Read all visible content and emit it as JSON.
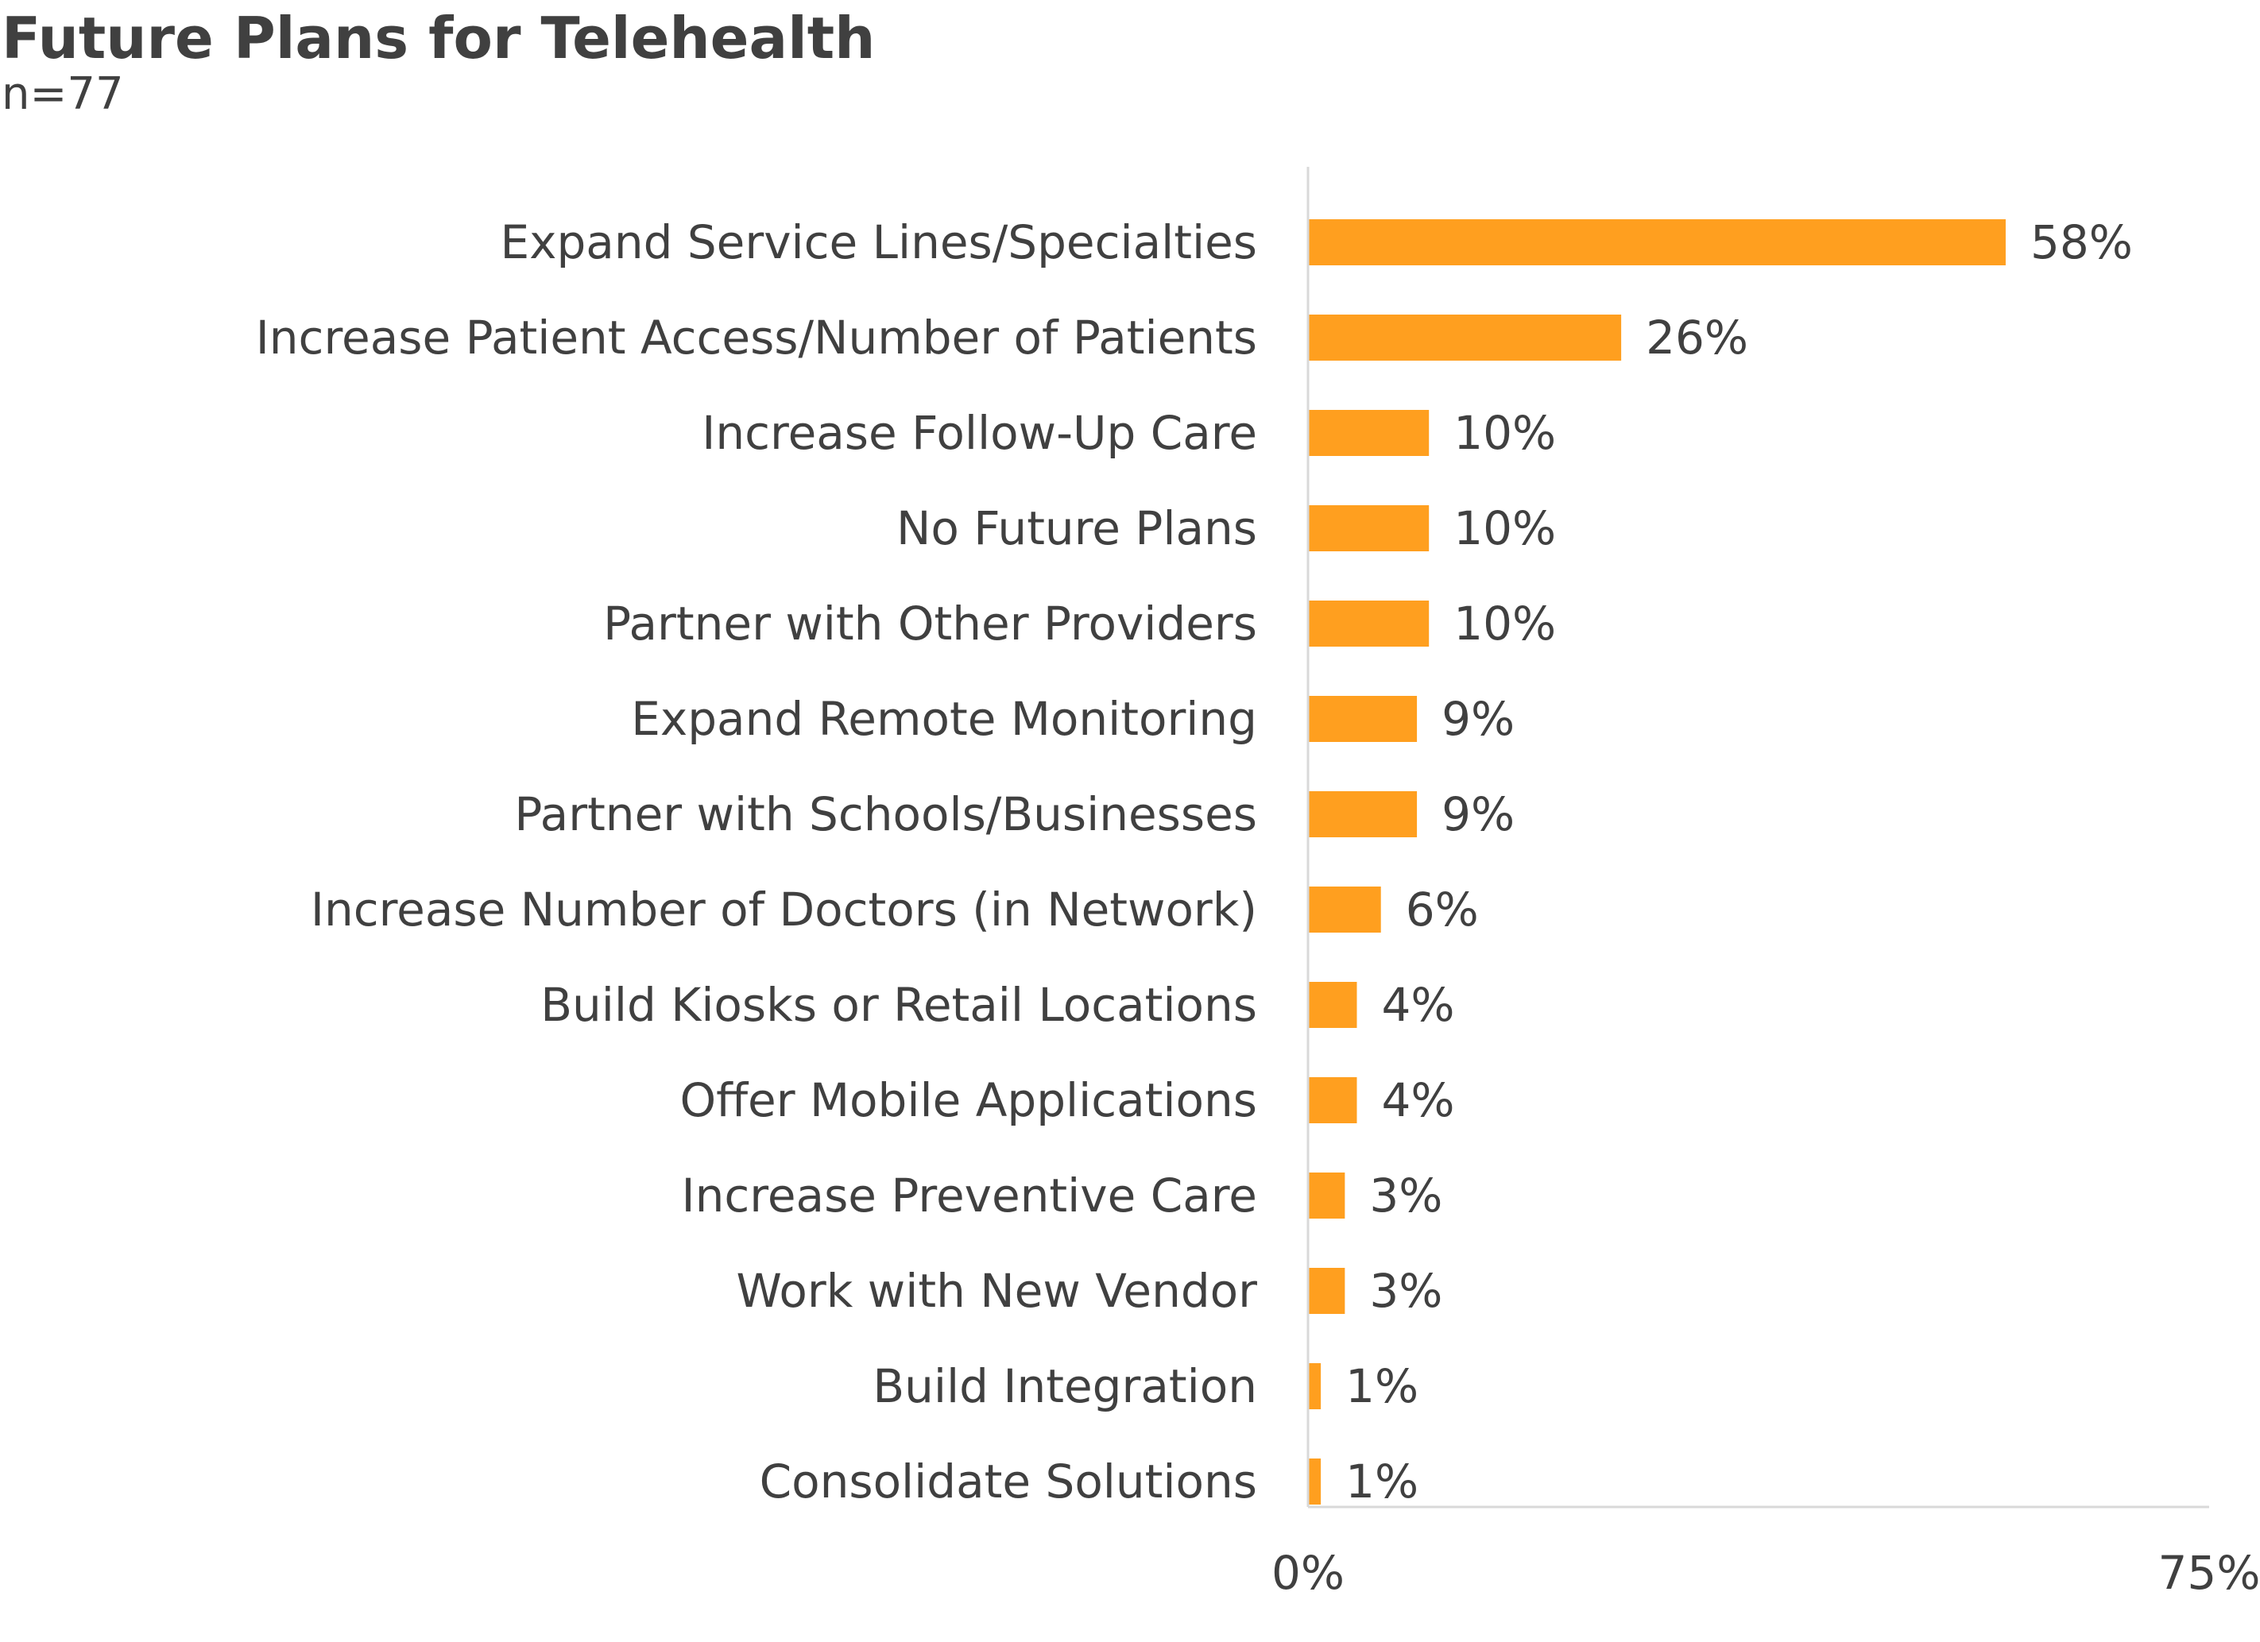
{
  "chart_data": {
    "type": "bar",
    "orientation": "horizontal",
    "title": "Future Plans for Telehealth",
    "subtitle": "n=77",
    "categories": [
      "Expand Service Lines/Specialties",
      "Increase Patient Access/Number of Patients",
      "Increase Follow-Up Care",
      "No Future Plans",
      "Partner with Other Providers",
      "Expand Remote Monitoring",
      "Partner with Schools/Businesses",
      "Increase Number of Doctors (in Network)",
      "Build Kiosks or Retail Locations",
      "Offer Mobile Applications",
      "Increase Preventive Care",
      "Work with New Vendor",
      "Build Integration",
      "Consolidate Solutions"
    ],
    "values": [
      58,
      26,
      10,
      10,
      10,
      9,
      9,
      6,
      4,
      4,
      3,
      3,
      1,
      1
    ],
    "data_labels": [
      "58%",
      "26%",
      "10%",
      "10%",
      "10%",
      "9%",
      "9%",
      "6%",
      "4%",
      "4%",
      "3%",
      "3%",
      "1%",
      "1%"
    ],
    "xlim": [
      0,
      75
    ],
    "x_ticks": [
      "0%",
      "75%"
    ],
    "xlabel": "",
    "ylabel": "",
    "grid": false,
    "legend": "none",
    "bar_color": "#FF9F1F"
  }
}
